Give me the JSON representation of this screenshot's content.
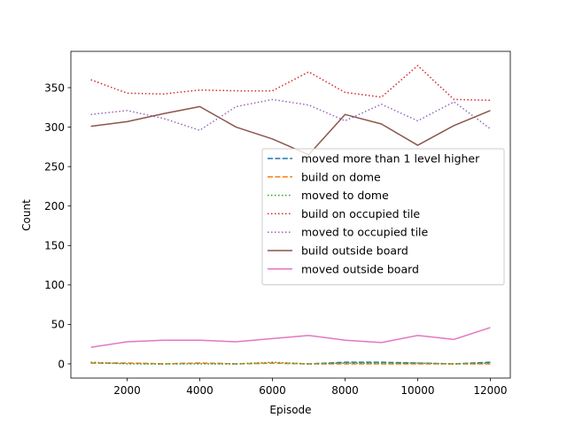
{
  "chart_data": {
    "type": "line",
    "title": "",
    "xlabel": "Episode",
    "ylabel": "Count",
    "xlim": [
      450,
      12550
    ],
    "ylim": [
      -18,
      396
    ],
    "xticks": [
      2000,
      4000,
      6000,
      8000,
      10000,
      12000
    ],
    "yticks": [
      0,
      50,
      100,
      150,
      200,
      250,
      300,
      350
    ],
    "x": [
      1000,
      2000,
      3000,
      4000,
      5000,
      6000,
      7000,
      8000,
      9000,
      10000,
      11000,
      12000
    ],
    "grid": false,
    "legend_position": "center-right",
    "series": [
      {
        "name": "moved more than 1 level higher",
        "color": "#1f77b4",
        "dash": "dashed",
        "values": [
          1,
          1,
          0,
          1,
          0,
          1,
          0,
          2,
          2,
          1,
          0,
          2
        ]
      },
      {
        "name": "build on dome",
        "color": "#ff7f0e",
        "dash": "dashed",
        "values": [
          1,
          1,
          0,
          1,
          0,
          1,
          0,
          0,
          0,
          0,
          0,
          0
        ]
      },
      {
        "name": "moved to dome",
        "color": "#2ca02c",
        "dash": "dotted",
        "values": [
          2,
          0,
          0,
          0,
          0,
          2,
          0,
          1,
          1,
          1,
          0,
          1
        ]
      },
      {
        "name": "build on occupied tile",
        "color": "#d62728",
        "dash": "dotted",
        "values": [
          360,
          343,
          342,
          347,
          346,
          346,
          370,
          344,
          338,
          378,
          335,
          334
        ]
      },
      {
        "name": "moved to occupied tile",
        "color": "#9467bd",
        "dash": "dotted",
        "values": [
          316,
          321,
          311,
          296,
          326,
          335,
          328,
          308,
          329,
          308,
          332,
          298
        ]
      },
      {
        "name": "build outside board",
        "color": "#8c564b",
        "dash": "solid",
        "values": [
          301,
          307,
          317,
          326,
          300,
          285,
          265,
          316,
          304,
          277,
          302,
          321
        ]
      },
      {
        "name": "moved outside board",
        "color": "#e377c2",
        "dash": "solid",
        "values": [
          21,
          28,
          30,
          30,
          28,
          32,
          36,
          30,
          27,
          36,
          31,
          46
        ]
      }
    ]
  }
}
